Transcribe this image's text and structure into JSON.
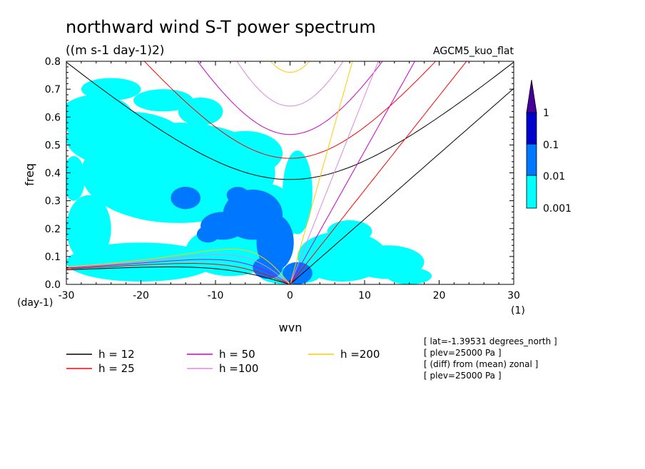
{
  "chart_data": {
    "type": "heatmap",
    "title": "northward wind S-T power spectrum",
    "units": "((m s-1 day-1)2)",
    "model_label": "AGCM5_kuo_flat",
    "xlabel": "wvn",
    "ylabel": "freq",
    "x_unit": "(1)",
    "y_unit": "(day-1)",
    "xlim": [
      -30,
      30
    ],
    "ylim": [
      0,
      0.8
    ],
    "x_ticks": [
      "-30",
      "-20",
      "-10",
      "0",
      "10",
      "20",
      "30"
    ],
    "x_tick_values": [
      -30,
      -20,
      -10,
      0,
      10,
      20,
      30
    ],
    "y_ticks": [
      "0.0",
      "0.1",
      "0.2",
      "0.3",
      "0.4",
      "0.5",
      "0.6",
      "0.7",
      "0.8"
    ],
    "y_tick_values": [
      0,
      0.1,
      0.2,
      0.3,
      0.4,
      0.5,
      0.6,
      0.7,
      0.8
    ],
    "colorbar": {
      "levels": [
        "0.001",
        "0.01",
        "0.1",
        "1"
      ],
      "colors": [
        "#00ffff",
        "#0077ff",
        "#0000cc",
        "#440099"
      ]
    },
    "dispersion_curves": [
      {
        "label": "h = 12",
        "h": 12,
        "color": "#000000"
      },
      {
        "label": "h = 25",
        "h": 25,
        "color": "#ff0000"
      },
      {
        "label": "h = 50",
        "h": 50,
        "color": "#cc00cc"
      },
      {
        "label": "h =100",
        "h": 100,
        "color": "#dd88dd"
      },
      {
        "label": "h =200",
        "h": 200,
        "color": "#ffcc00"
      }
    ],
    "contours": [
      {
        "level": 0.001,
        "blobs": [
          [
            -15,
            0.4,
            13,
            0.18
          ],
          [
            -22,
            0.52,
            8,
            0.1
          ],
          [
            -26,
            0.6,
            5,
            0.08
          ],
          [
            -24,
            0.7,
            4,
            0.04
          ],
          [
            -12,
            0.62,
            3,
            0.05
          ],
          [
            -6,
            0.47,
            5,
            0.08
          ],
          [
            -27,
            0.2,
            3,
            0.12
          ],
          [
            -20,
            0.08,
            10,
            0.07
          ],
          [
            -8,
            0.12,
            6,
            0.09
          ],
          [
            0,
            0.03,
            4,
            0.03
          ],
          [
            7,
            0.1,
            6,
            0.09
          ],
          [
            13,
            0.08,
            5,
            0.06
          ],
          [
            16,
            0.03,
            3,
            0.03
          ],
          [
            1,
            0.33,
            2,
            0.15
          ],
          [
            -3,
            0.24,
            4,
            0.12
          ],
          [
            -17,
            0.66,
            4,
            0.04
          ],
          [
            8,
            0.19,
            3,
            0.04
          ],
          [
            -29,
            0.38,
            1.5,
            0.08
          ]
        ]
      },
      {
        "level": 0.01,
        "blobs": [
          [
            -5,
            0.25,
            4,
            0.09
          ],
          [
            -9,
            0.21,
            3,
            0.05
          ],
          [
            -2,
            0.15,
            2.5,
            0.1
          ],
          [
            1,
            0.04,
            2,
            0.04
          ],
          [
            -3,
            0.06,
            2,
            0.04
          ],
          [
            -14,
            0.31,
            2,
            0.04
          ],
          [
            -11,
            0.18,
            1.5,
            0.03
          ],
          [
            -7,
            0.32,
            1.5,
            0.03
          ]
        ]
      }
    ]
  },
  "legend": [
    {
      "label": "h = 12",
      "color": "#000000"
    },
    {
      "label": "h = 25",
      "color": "#ff0000"
    },
    {
      "label": "h = 50",
      "color": "#cc00cc"
    },
    {
      "label": "h =100",
      "color": "#dd88dd"
    },
    {
      "label": "h =200",
      "color": "#ffcc00"
    }
  ],
  "info": [
    "[ lat=-1.39531 degrees_north ]",
    "[ plev=25000 Pa ]",
    "[ (diff) from (mean) zonal ]",
    "[ plev=25000 Pa ]"
  ]
}
